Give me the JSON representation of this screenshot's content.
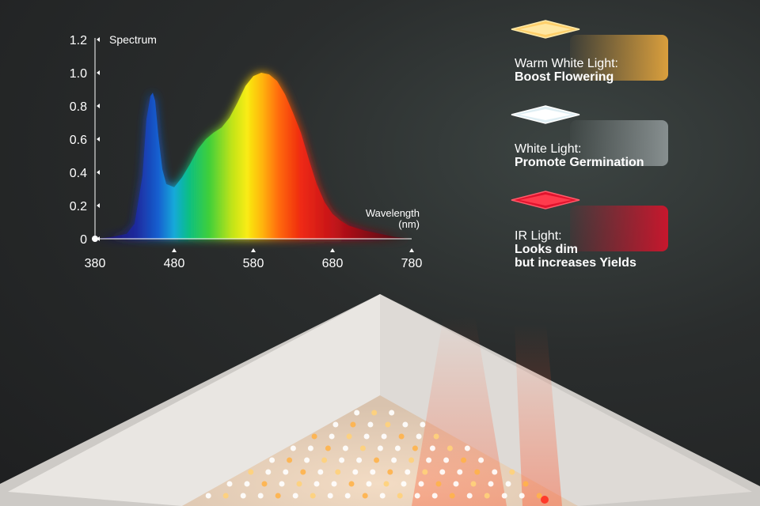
{
  "chart_data": {
    "type": "area",
    "ylabel": "Spectrum",
    "xlabel": "Wavelength\n(nm)",
    "xlabel_line1": "Wavelength",
    "xlabel_line2": "(nm)",
    "xlim": [
      380,
      780
    ],
    "ylim": [
      0,
      1.2
    ],
    "x_ticks": [
      "380",
      "480",
      "580",
      "680",
      "780"
    ],
    "y_ticks": [
      "0",
      "0.2",
      "0.4",
      "0.6",
      "0.8",
      "1.0",
      "1.2"
    ],
    "grid": false,
    "series": [
      {
        "x": [
          380,
          400,
          420,
          430,
          440,
          445,
          450,
          453,
          456,
          460,
          465,
          470,
          480,
          490,
          500,
          510,
          520,
          530,
          540,
          550,
          560,
          570,
          580,
          590,
          600,
          610,
          620,
          630,
          640,
          650,
          660,
          670,
          680,
          690,
          700,
          720,
          740,
          760,
          780
        ],
        "y": [
          0.0,
          0.01,
          0.03,
          0.09,
          0.38,
          0.72,
          0.86,
          0.88,
          0.83,
          0.62,
          0.42,
          0.33,
          0.31,
          0.37,
          0.45,
          0.54,
          0.6,
          0.64,
          0.67,
          0.73,
          0.82,
          0.92,
          0.98,
          1.0,
          0.99,
          0.95,
          0.87,
          0.76,
          0.64,
          0.48,
          0.33,
          0.22,
          0.15,
          0.11,
          0.08,
          0.05,
          0.03,
          0.01,
          0.0
        ]
      }
    ]
  },
  "legend": [
    {
      "line1": "Warm White Light:",
      "line2": "Boost Flowering",
      "color": "#f7b13e"
    },
    {
      "line1": "White Light:",
      "line2": "Promote Germination",
      "color": "#e9f3f6"
    },
    {
      "line1": "IR Light:",
      "line2": "Looks dim",
      "line3": "but increases Yields",
      "color": "#e1112b"
    }
  ]
}
